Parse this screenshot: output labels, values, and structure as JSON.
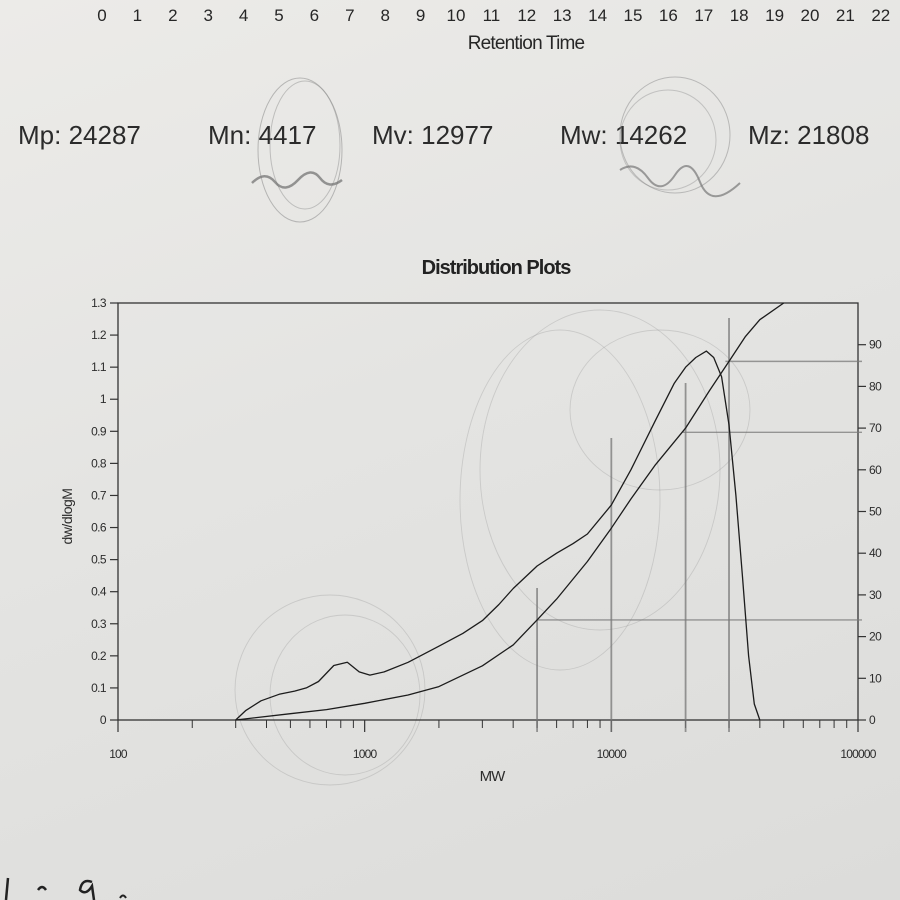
{
  "retention_axis": {
    "ticks": [
      "0",
      "1",
      "2",
      "3",
      "4",
      "5",
      "6",
      "7",
      "8",
      "9",
      "10",
      "11",
      "12",
      "13",
      "14",
      "15",
      "16",
      "17",
      "18",
      "19",
      "20",
      "21",
      "22"
    ],
    "label": "Retention Time"
  },
  "stats": [
    {
      "label": "Mp: 24287"
    },
    {
      "label": "Mn: 4417"
    },
    {
      "label": "Mv: 12977"
    },
    {
      "label": "Mw: 14262"
    },
    {
      "label": "Mz: 21808"
    }
  ],
  "chart_data": {
    "type": "line",
    "title": "Distribution Plots",
    "xlabel": "MW",
    "ylabel": "dw/dlogM",
    "x_scale": "log",
    "xlim": [
      100,
      100000
    ],
    "ylim": [
      0,
      1.3
    ],
    "y2lim": [
      0,
      100
    ],
    "x_tick_labels": [
      "100",
      "1000",
      "10000",
      "100000"
    ],
    "y_tick_labels": [
      "0",
      "0.1",
      "0.2",
      "0.3",
      "0.4",
      "0.5",
      "0.6",
      "0.7",
      "0.8",
      "0.9",
      "1",
      "1.1",
      "1.2",
      "1.3"
    ],
    "y2_tick_labels": [
      "0",
      "10",
      "20",
      "30",
      "40",
      "50",
      "60",
      "70",
      "80",
      "90"
    ],
    "grid": false,
    "series": [
      {
        "axis": "left",
        "x": [
          300,
          330,
          380,
          450,
          520,
          580,
          650,
          750,
          850,
          950,
          1050,
          1200,
          1500,
          2000,
          2500,
          3000,
          3500,
          4000,
          5000,
          6000,
          7000,
          8000,
          10000,
          12000,
          15000,
          18000,
          20000,
          22000,
          24287,
          26000,
          28000,
          30000,
          32000,
          34000,
          36000,
          38000,
          40000
        ],
        "values": [
          0,
          0.03,
          0.06,
          0.08,
          0.09,
          0.1,
          0.12,
          0.17,
          0.18,
          0.15,
          0.14,
          0.15,
          0.18,
          0.23,
          0.27,
          0.31,
          0.36,
          0.41,
          0.48,
          0.52,
          0.55,
          0.58,
          0.67,
          0.78,
          0.93,
          1.05,
          1.1,
          1.13,
          1.15,
          1.13,
          1.07,
          0.92,
          0.7,
          0.45,
          0.2,
          0.05,
          0
        ]
      },
      {
        "axis": "right",
        "x": [
          300,
          500,
          700,
          1000,
          1500,
          2000,
          3000,
          4000,
          5000,
          6000,
          8000,
          10000,
          12000,
          15000,
          20000,
          25000,
          30000,
          35000,
          40000,
          50000
        ],
        "values": [
          0,
          1.5,
          2.5,
          4,
          6,
          8,
          13,
          18,
          24,
          29,
          38,
          46,
          53,
          61,
          70,
          79,
          86,
          92,
          96,
          100
        ]
      }
    ],
    "annotations": [
      {
        "type": "vline",
        "x": 5000
      },
      {
        "type": "vline",
        "x": 10000
      },
      {
        "type": "vline",
        "x": 20000
      },
      {
        "type": "vline",
        "x": 30000
      },
      {
        "type": "hline",
        "axis": "right",
        "value": 24
      },
      {
        "type": "hline",
        "axis": "right",
        "value": 69
      },
      {
        "type": "hline",
        "axis": "right",
        "value": 86
      }
    ]
  }
}
